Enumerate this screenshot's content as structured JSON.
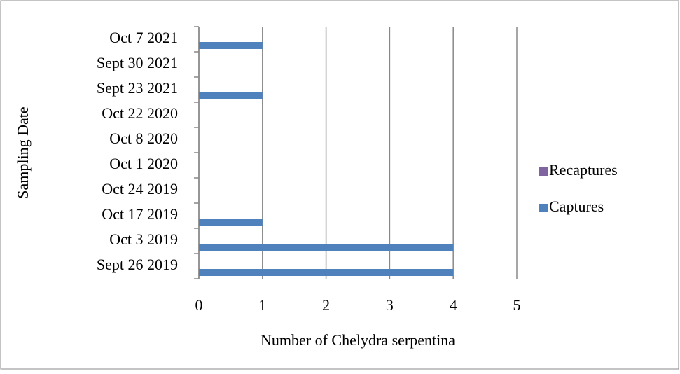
{
  "chart_data": {
    "type": "bar",
    "orientation": "horizontal",
    "x_label": "Number of Chelydra serpentina",
    "y_label": "Sampling Date",
    "categories": [
      "Sept 26 2019",
      "Oct 3 2019",
      "Oct 17 2019",
      "Oct 24 2019",
      "Oct 1 2020",
      "Oct 8 2020",
      "Oct 22 2020",
      "Sept 23 2021",
      "Sept 30 2021",
      "Oct 7 2021"
    ],
    "series": [
      {
        "name": "Captures",
        "color": "#4f81bd",
        "values": [
          4,
          4,
          1,
          0,
          0,
          0,
          0,
          1,
          0,
          1
        ]
      },
      {
        "name": "Recaptures",
        "color": "#8064a2",
        "values": [
          0,
          0,
          0,
          0,
          0,
          0,
          0,
          0,
          0,
          0
        ]
      }
    ],
    "xlim": [
      0,
      5
    ],
    "xticks": [
      0,
      1,
      2,
      3,
      4,
      5
    ],
    "grid": true,
    "legend": "right"
  }
}
